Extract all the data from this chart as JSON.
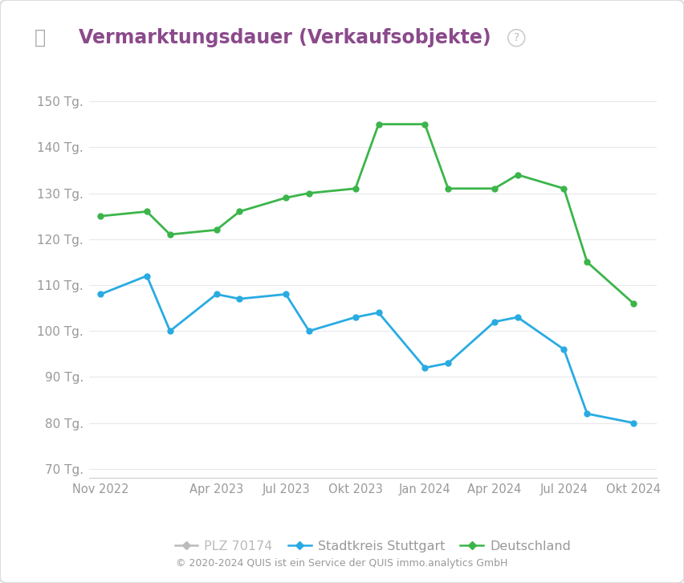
{
  "title": "Vermarktungsdauer (Verkaufsobjekte)",
  "ylabel_ticks": [
    "70 Tg.",
    "80 Tg.",
    "90 Tg.",
    "100 Tg.",
    "110 Tg.",
    "120 Tg.",
    "130 Tg.",
    "140 Tg.",
    "150 Tg."
  ],
  "ylim": [
    68,
    153
  ],
  "yticks": [
    70,
    80,
    90,
    100,
    110,
    120,
    130,
    140,
    150
  ],
  "xtick_labels": [
    "Nov 2022",
    "Apr 2023",
    "Jul 2023",
    "Okt 2023",
    "Jan 2024",
    "Apr 2024",
    "Jul 2024",
    "Okt 2024"
  ],
  "x_positions": [
    0,
    5,
    8,
    11,
    14,
    17,
    20,
    23
  ],
  "stuttgart_x": [
    0,
    2,
    3,
    5,
    6,
    8,
    9,
    11,
    12,
    14,
    15,
    17,
    18,
    20,
    21,
    23
  ],
  "stuttgart_y": [
    108,
    112,
    100,
    108,
    107,
    108,
    100,
    103,
    104,
    92,
    93,
    102,
    103,
    96,
    82,
    80
  ],
  "deutschland_x": [
    0,
    2,
    3,
    5,
    6,
    8,
    9,
    11,
    12,
    14,
    15,
    17,
    18,
    20,
    21,
    23
  ],
  "deutschland_y": [
    125,
    126,
    121,
    122,
    126,
    129,
    130,
    131,
    145,
    145,
    131,
    131,
    134,
    131,
    115,
    106
  ],
  "stuttgart_color": "#29ABE2",
  "deutschland_color": "#3BB54A",
  "plz_color": "#BBBBBB",
  "background_color": "#FFFFFF",
  "plot_bg_color": "#FFFFFF",
  "title_color": "#8B4A8B",
  "tick_label_color": "#999999",
  "grid_color": "#E8E8EE",
  "footer_text": "© 2020-2024 QUIS ist ein Service der QUIS immo.analytics GmbH",
  "legend_plz": "PLZ 70174",
  "legend_stuttgart": "Stadtkreis Stuttgart",
  "legend_deutschland": "Deutschland",
  "line_width": 2.0,
  "marker_size": 5
}
